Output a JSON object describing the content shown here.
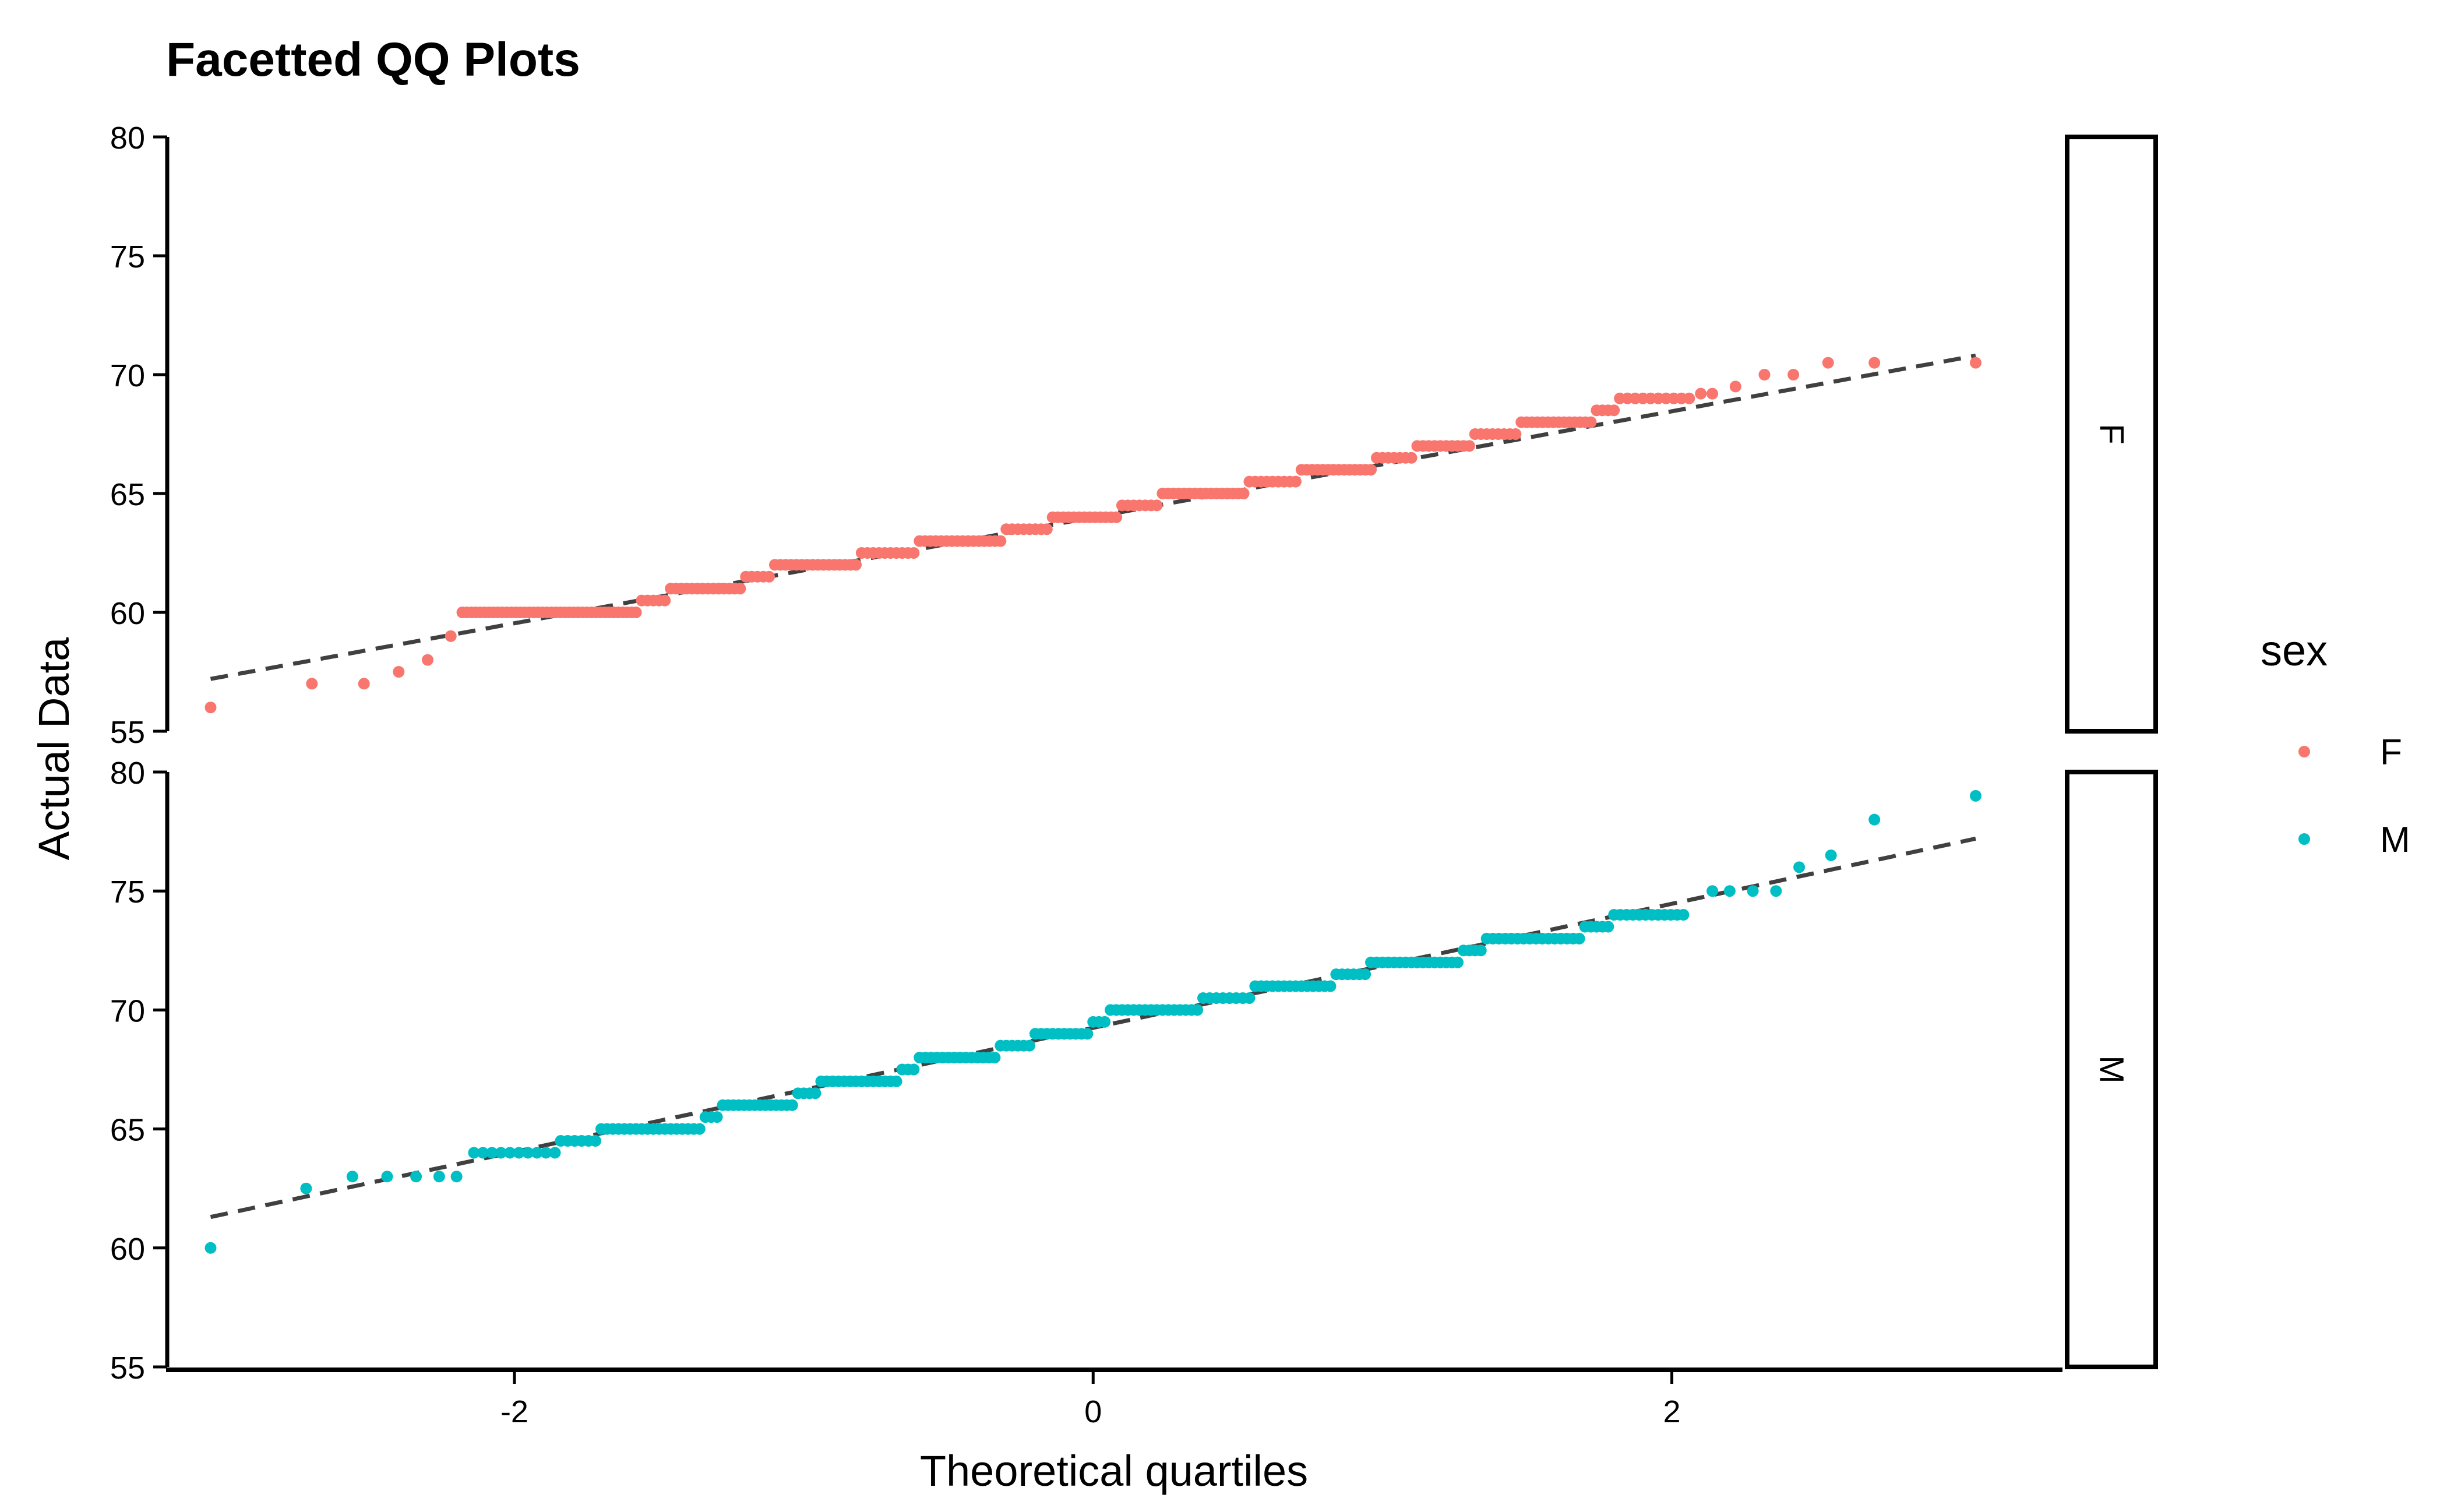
{
  "chart_data": {
    "type": "scatter",
    "subtype": "qq-facetted",
    "title": "Facetted QQ Plots",
    "xlabel": "Theoretical quartiles",
    "ylabel": "Actual Data",
    "xlim": [
      -3.2,
      3.35
    ],
    "ylim": [
      55,
      80
    ],
    "x_ticks": [
      -2,
      0,
      2
    ],
    "x_tick_labels": [
      "-2",
      "0",
      "2"
    ],
    "y_ticks": [
      55,
      60,
      65,
      70,
      75,
      80
    ],
    "y_tick_labels": [
      "55",
      "60",
      "65",
      "70",
      "75",
      "80"
    ],
    "grid": false,
    "legend": {
      "title": "sex",
      "position": "right",
      "entries": [
        "F",
        "M"
      ]
    },
    "colors": {
      "F": "#F8766D",
      "M": "#00BFC4",
      "reference_line": "#404040"
    },
    "facets": [
      {
        "label": "F",
        "color": "#F8766D",
        "reference_line": {
          "x": [
            -3.05,
            3.05
          ],
          "y": [
            57.2,
            70.8
          ]
        },
        "steps": [
          {
            "y": 60,
            "x0": -2.18,
            "x1": -1.58,
            "n": 40
          },
          {
            "y": 60.5,
            "x0": -1.56,
            "x1": -1.48,
            "n": 5
          },
          {
            "y": 61,
            "x0": -1.46,
            "x1": -1.22,
            "n": 14
          },
          {
            "y": 61.5,
            "x0": -1.2,
            "x1": -1.12,
            "n": 5
          },
          {
            "y": 62,
            "x0": -1.1,
            "x1": -0.82,
            "n": 16
          },
          {
            "y": 62.5,
            "x0": -0.8,
            "x1": -0.62,
            "n": 10
          },
          {
            "y": 63,
            "x0": -0.6,
            "x1": -0.32,
            "n": 16
          },
          {
            "y": 63.5,
            "x0": -0.3,
            "x1": -0.16,
            "n": 8
          },
          {
            "y": 64,
            "x0": -0.14,
            "x1": 0.08,
            "n": 13
          },
          {
            "y": 64.5,
            "x0": 0.1,
            "x1": 0.22,
            "n": 7
          },
          {
            "y": 65,
            "x0": 0.24,
            "x1": 0.52,
            "n": 16
          },
          {
            "y": 65.5,
            "x0": 0.54,
            "x1": 0.7,
            "n": 9
          },
          {
            "y": 66,
            "x0": 0.72,
            "x1": 0.96,
            "n": 14
          },
          {
            "y": 66.5,
            "x0": 0.98,
            "x1": 1.1,
            "n": 7
          },
          {
            "y": 67,
            "x0": 1.12,
            "x1": 1.3,
            "n": 10
          },
          {
            "y": 67.5,
            "x0": 1.32,
            "x1": 1.46,
            "n": 8
          },
          {
            "y": 68,
            "x0": 1.48,
            "x1": 1.72,
            "n": 14
          },
          {
            "y": 68.5,
            "x0": 1.74,
            "x1": 1.8,
            "n": 4
          },
          {
            "y": 69,
            "x0": 1.82,
            "x1": 2.06,
            "n": 10
          }
        ],
        "points": [
          {
            "x": -3.05,
            "y": 56
          },
          {
            "x": -2.7,
            "y": 57
          },
          {
            "x": -2.52,
            "y": 57
          },
          {
            "x": -2.4,
            "y": 57.5
          },
          {
            "x": -2.3,
            "y": 58
          },
          {
            "x": -2.22,
            "y": 59
          },
          {
            "x": 2.1,
            "y": 69.2
          },
          {
            "x": 2.14,
            "y": 69.2
          },
          {
            "x": 2.22,
            "y": 69.5
          },
          {
            "x": 2.32,
            "y": 70
          },
          {
            "x": 2.42,
            "y": 70
          },
          {
            "x": 2.54,
            "y": 70.5
          },
          {
            "x": 2.7,
            "y": 70.5
          },
          {
            "x": 3.05,
            "y": 70.5
          }
        ]
      },
      {
        "label": "M",
        "color": "#00BFC4",
        "reference_line": {
          "x": [
            -3.05,
            3.05
          ],
          "y": [
            61.3,
            77.2
          ]
        },
        "steps": [
          {
            "y": 64,
            "x0": -2.14,
            "x1": -1.86,
            "n": 10
          },
          {
            "y": 64.5,
            "x0": -1.84,
            "x1": -1.72,
            "n": 6
          },
          {
            "y": 65,
            "x0": -1.7,
            "x1": -1.36,
            "n": 18
          },
          {
            "y": 65.5,
            "x0": -1.34,
            "x1": -1.3,
            "n": 3
          },
          {
            "y": 66,
            "x0": -1.28,
            "x1": -1.04,
            "n": 14
          },
          {
            "y": 66.5,
            "x0": -1.02,
            "x1": -0.96,
            "n": 4
          },
          {
            "y": 67,
            "x0": -0.94,
            "x1": -0.68,
            "n": 14
          },
          {
            "y": 67.5,
            "x0": -0.66,
            "x1": -0.62,
            "n": 3
          },
          {
            "y": 68,
            "x0": -0.6,
            "x1": -0.34,
            "n": 14
          },
          {
            "y": 68.5,
            "x0": -0.32,
            "x1": -0.22,
            "n": 6
          },
          {
            "y": 69,
            "x0": -0.2,
            "x1": -0.02,
            "n": 10
          },
          {
            "y": 69.5,
            "x0": 0.0,
            "x1": 0.04,
            "n": 3
          },
          {
            "y": 70,
            "x0": 0.06,
            "x1": 0.36,
            "n": 16
          },
          {
            "y": 70.5,
            "x0": 0.38,
            "x1": 0.54,
            "n": 8
          },
          {
            "y": 71,
            "x0": 0.56,
            "x1": 0.82,
            "n": 14
          },
          {
            "y": 71.5,
            "x0": 0.84,
            "x1": 0.94,
            "n": 6
          },
          {
            "y": 72,
            "x0": 0.96,
            "x1": 1.26,
            "n": 16
          },
          {
            "y": 72.5,
            "x0": 1.28,
            "x1": 1.34,
            "n": 4
          },
          {
            "y": 73,
            "x0": 1.36,
            "x1": 1.68,
            "n": 16
          },
          {
            "y": 73.5,
            "x0": 1.7,
            "x1": 1.78,
            "n": 5
          },
          {
            "y": 74,
            "x0": 1.8,
            "x1": 2.04,
            "n": 12
          }
        ],
        "points": [
          {
            "x": -3.05,
            "y": 60
          },
          {
            "x": -2.72,
            "y": 62.5
          },
          {
            "x": -2.56,
            "y": 63
          },
          {
            "x": -2.44,
            "y": 63
          },
          {
            "x": -2.34,
            "y": 63
          },
          {
            "x": -2.26,
            "y": 63
          },
          {
            "x": -2.2,
            "y": 63
          },
          {
            "x": 2.14,
            "y": 75
          },
          {
            "x": 2.2,
            "y": 75
          },
          {
            "x": 2.28,
            "y": 75
          },
          {
            "x": 2.36,
            "y": 75
          },
          {
            "x": 2.44,
            "y": 76
          },
          {
            "x": 2.55,
            "y": 76.5
          },
          {
            "x": 2.7,
            "y": 78
          },
          {
            "x": 3.05,
            "y": 79
          }
        ]
      }
    ]
  }
}
